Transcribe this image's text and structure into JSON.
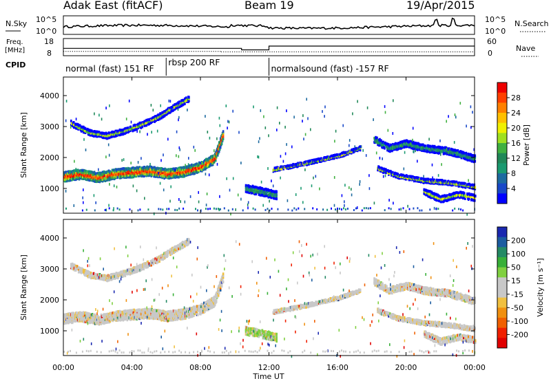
{
  "header": {
    "title_left": "Adak East (fitACF)",
    "title_center": "Beam 19",
    "title_right": "19/Apr/2015"
  },
  "noise_panel": {
    "left_label": "N.Sky",
    "right_label": "N.Search",
    "left_ticks": [
      "10^5",
      "10^0"
    ],
    "right_ticks": [
      "10^5",
      "10^0"
    ]
  },
  "freq_panel": {
    "left_label_1": "Freq.",
    "left_label_2": "[MHz]",
    "left_ticks": [
      "18",
      "8"
    ],
    "right_label": "Nave",
    "right_ticks": [
      "60",
      "0"
    ],
    "freq_steps_hours": [
      [
        0,
        10.4,
        12.3
      ],
      [
        10.4,
        12.0,
        11.4
      ],
      [
        12.0,
        24,
        13.6
      ]
    ],
    "nave_steps_hours": [
      [
        0,
        9.2,
        0.55
      ],
      [
        9.2,
        24,
        0.5
      ]
    ]
  },
  "cpid": {
    "label": "CPID",
    "segments": [
      {
        "start_hour": 0,
        "end_hour": 6.0,
        "label": "normal (fast) 151 RF"
      },
      {
        "start_hour": 6.0,
        "end_hour": 12.0,
        "label": "rbsp 200 RF"
      },
      {
        "start_hour": 12.0,
        "end_hour": 24,
        "label": "normalsound (fast) -157 RF"
      }
    ]
  },
  "axes": {
    "y_label": "Slant Range [km]",
    "y_range": [
      200,
      4600
    ],
    "y_ticks": [
      1000,
      2000,
      3000,
      4000
    ],
    "x_label": "Time UT",
    "x_range": [
      0,
      24
    ],
    "x_ticks": [
      "00:00",
      "04:00",
      "08:00",
      "12:00",
      "16:00",
      "20:00",
      "00:00"
    ]
  },
  "power_colorbar": {
    "label": "Power [dB]",
    "ticks": [
      "28",
      "24",
      "20",
      "16",
      "12",
      "8",
      "4"
    ],
    "colors": [
      "#ee0000",
      "#ff4000",
      "#ff8000",
      "#ffc000",
      "#f0f000",
      "#a0e020",
      "#40b040",
      "#208858",
      "#1a9a70",
      "#1c6aa0",
      "#1848c8",
      "#0000ff"
    ]
  },
  "velocity_colorbar": {
    "label": "Velocity [m s⁻¹]",
    "ticks": [
      "200",
      "100",
      "50",
      "15",
      "-15",
      "-50",
      "-100",
      "-200"
    ],
    "colors": [
      "#1a28b0",
      "#1c5ca0",
      "#248a64",
      "#38b038",
      "#80d040",
      "#c8c8c8",
      "#c8c8c8",
      "#f0c040",
      "#f09010",
      "#f06000",
      "#f02000",
      "#e00000"
    ]
  },
  "chart_data": {
    "type": "heatmap",
    "x_unit": "hours UT",
    "y_unit": "km",
    "echo_bands": [
      {
        "name": "band-a",
        "points": [
          [
            0.0,
            1380
          ],
          [
            1.0,
            1460
          ],
          [
            2.0,
            1350
          ],
          [
            3.0,
            1470
          ],
          [
            4.0,
            1520
          ],
          [
            5.0,
            1560
          ],
          [
            6.0,
            1470
          ],
          [
            7.0,
            1540
          ],
          [
            8.0,
            1700
          ],
          [
            8.8,
            1960
          ],
          [
            9.3,
            2750
          ]
        ],
        "width": 260
      },
      {
        "name": "band-b",
        "points": [
          [
            0.4,
            3100
          ],
          [
            1.5,
            2800
          ],
          [
            2.5,
            2700
          ],
          [
            3.5,
            2850
          ],
          [
            4.5,
            3050
          ],
          [
            5.5,
            3300
          ],
          [
            6.2,
            3550
          ],
          [
            7.3,
            3900
          ]
        ],
        "width": 130
      },
      {
        "name": "band-c",
        "points": [
          [
            10.6,
            1000
          ],
          [
            11.5,
            900
          ],
          [
            12.4,
            780
          ]
        ],
        "width": 200
      },
      {
        "name": "band-d",
        "points": [
          [
            12.2,
            1600
          ],
          [
            14.0,
            1800
          ],
          [
            16.0,
            2050
          ],
          [
            17.3,
            2300
          ]
        ],
        "width": 70
      },
      {
        "name": "band-e",
        "points": [
          [
            18.1,
            2580
          ],
          [
            19.0,
            2300
          ],
          [
            20.0,
            2450
          ],
          [
            21.0,
            2300
          ],
          [
            22.5,
            2200
          ],
          [
            24.0,
            1950
          ]
        ],
        "width": 170
      },
      {
        "name": "band-f",
        "points": [
          [
            18.3,
            1650
          ],
          [
            19.5,
            1400
          ],
          [
            21.0,
            1250
          ],
          [
            22.5,
            1180
          ],
          [
            24.0,
            1050
          ]
        ],
        "width": 90
      },
      {
        "name": "band-g",
        "points": [
          [
            21.0,
            900
          ],
          [
            22.0,
            650
          ],
          [
            23.0,
            800
          ],
          [
            24.0,
            700
          ]
        ],
        "width": 150
      }
    ]
  }
}
